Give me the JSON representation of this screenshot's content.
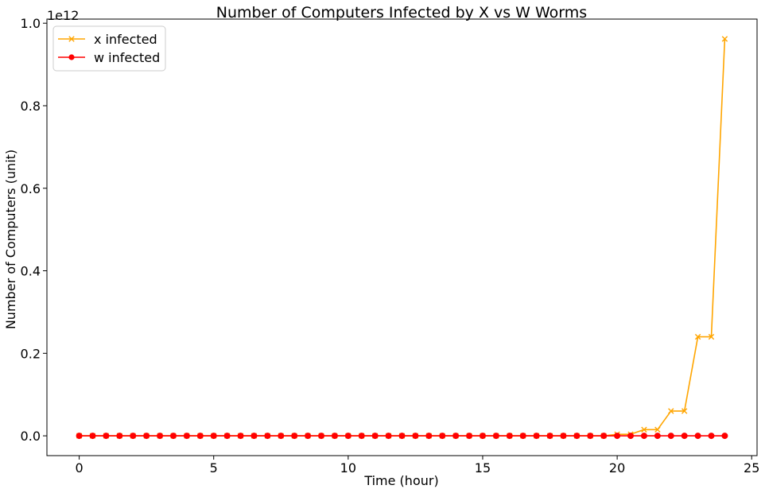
{
  "chart_data": {
    "type": "line",
    "title": "Number of Computers Infected by X vs W Worms",
    "xlabel": "Time (hour)",
    "ylabel": "Number of Computers (unit)",
    "y_offset_label": "1e12",
    "xlim": [
      -1.2,
      25.2
    ],
    "ylim": [
      -0.048,
      1.01
    ],
    "x_ticks": [
      0,
      5,
      10,
      15,
      20,
      25
    ],
    "x_tick_labels": [
      "0",
      "5",
      "10",
      "15",
      "20",
      "25"
    ],
    "y_ticks": [
      0.0,
      0.2,
      0.4,
      0.6,
      0.8,
      1.0
    ],
    "y_tick_labels": [
      "0.0",
      "0.2",
      "0.4",
      "0.6",
      "0.8",
      "1.0"
    ],
    "grid": false,
    "legend_position": "top-left",
    "x": [
      0,
      0.5,
      1,
      1.5,
      2,
      2.5,
      3,
      3.5,
      4,
      4.5,
      5,
      5.5,
      6,
      6.5,
      7,
      7.5,
      8,
      8.5,
      9,
      9.5,
      10,
      10.5,
      11,
      11.5,
      12,
      12.5,
      13,
      13.5,
      14,
      14.5,
      15,
      15.5,
      16,
      16.5,
      17,
      17.5,
      18,
      18.5,
      19,
      19.5,
      20,
      20.5,
      21,
      21.5,
      22,
      22.5,
      23,
      23.5,
      24
    ],
    "series": [
      {
        "name": "x infected",
        "color": "#ffa500",
        "marker": "x",
        "values": [
          0,
          0,
          0,
          0,
          0,
          0,
          0,
          0,
          0,
          0,
          0,
          0,
          0,
          0,
          0,
          0,
          0,
          0,
          0,
          0,
          0,
          0,
          0,
          0,
          0,
          0,
          0,
          0,
          0,
          0,
          0,
          0,
          0,
          0,
          0,
          0,
          0,
          0,
          0,
          0,
          0.0037,
          0.0037,
          0.015,
          0.015,
          0.06,
          0.06,
          0.24,
          0.24,
          0.962
        ]
      },
      {
        "name": "w infected",
        "color": "#ff0000",
        "marker": "o",
        "values": [
          0,
          0,
          0,
          0,
          0,
          0,
          0,
          0,
          0,
          0,
          0,
          0,
          0,
          0,
          0,
          0,
          0,
          0,
          0,
          0,
          0,
          0,
          0,
          0,
          0,
          0,
          0,
          0,
          0,
          0,
          0,
          0,
          0,
          0,
          0,
          0,
          0,
          0,
          0,
          0,
          0,
          0,
          0,
          0,
          0,
          0,
          0,
          0,
          0
        ]
      }
    ]
  }
}
